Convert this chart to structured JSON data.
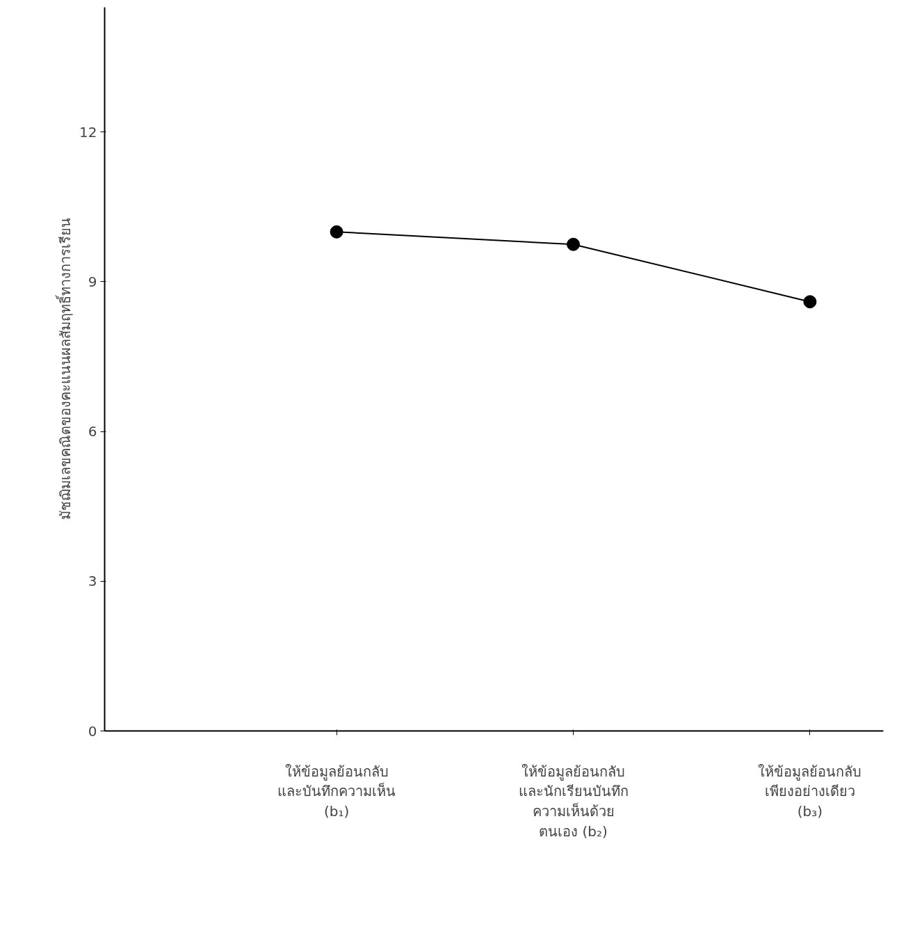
{
  "chart_data": {
    "type": "line",
    "ylabel": "มัชฌิมเลขคณิตของคะแนนผลสัมฤทธิ์ทางการเรียน",
    "categories": [
      "ให้ข้อมูลย้อนกลับ\nและบันทึกความเห็น\n(b₁)",
      "ให้ข้อมูลย้อนกลับ\nและนักเรียนบันทึก\nความเห็นด้วย\nตนเอง (b₂)",
      "ให้ข้อมูลย้อนกลับ\nเพียงอย่างเดียว\n(b₃)"
    ],
    "series": [
      {
        "color": "#000000",
        "values": [
          10.0,
          9.75,
          8.6
        ]
      }
    ],
    "ylim": [
      0,
      14.5
    ],
    "yticks": [
      0,
      3,
      6,
      9,
      12
    ],
    "grid": false,
    "marker": "circle",
    "line_style": "solid"
  }
}
